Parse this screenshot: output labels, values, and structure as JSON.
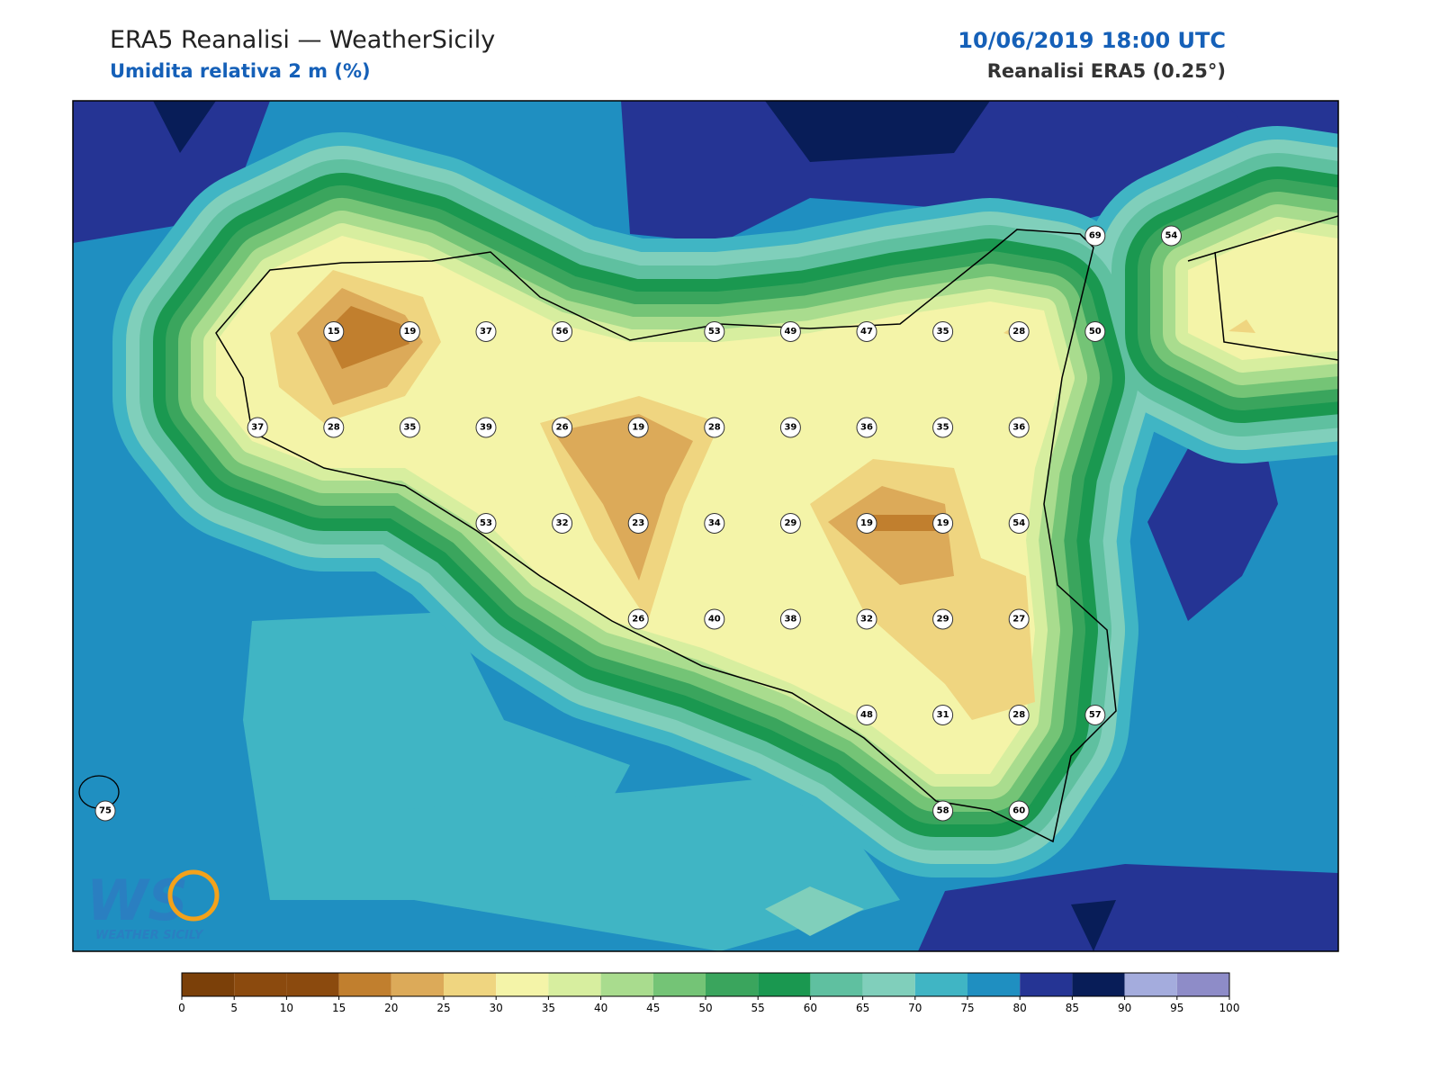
{
  "header": {
    "title": "ERA5 Reanalisi — WeatherSicily",
    "subtitle": "Umidita relativa 2 m (%)",
    "datetime": "10/06/2019 18:00 UTC",
    "source": "Reanalisi ERA5 (0.25°)"
  },
  "stations": [
    69,
    54,
    15,
    19,
    37,
    56,
    53,
    49,
    47,
    35,
    28,
    50,
    37,
    28,
    35,
    39,
    26,
    19,
    28,
    39,
    36,
    35,
    36,
    53,
    32,
    23,
    34,
    29,
    19,
    19,
    54,
    26,
    40,
    38,
    32,
    29,
    27,
    48,
    31,
    28,
    57,
    75,
    58,
    60
  ],
  "colorbar": {
    "ticks": [
      0,
      5,
      10,
      15,
      20,
      25,
      30,
      35,
      40,
      45,
      50,
      55,
      60,
      65,
      70,
      75,
      80,
      85,
      90,
      95,
      100
    ],
    "colors": [
      "#7b4009",
      "#8b4a0e",
      "#8b4a0e",
      "#c17f2e",
      "#dcaa59",
      "#efd580",
      "#f4f4a8",
      "#d7ee9f",
      "#a9dc8e",
      "#74c476",
      "#3aa55d",
      "#1a9850",
      "#5fc0a0",
      "#80cfbb",
      "#40b5c4",
      "#1f8fc1",
      "#253494",
      "#081d58",
      "#a4acdd",
      "#8e8cc8"
    ]
  },
  "logo": {
    "mark": "WS",
    "text": "WEATHER SICILY"
  }
}
